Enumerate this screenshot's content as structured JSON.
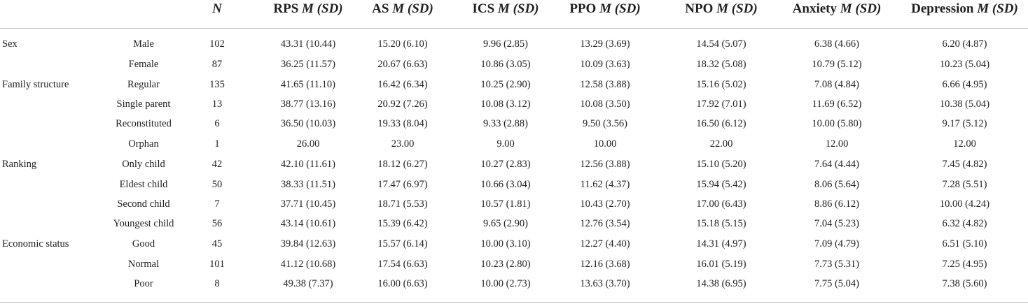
{
  "header": {
    "n": "N",
    "cols": [
      {
        "name": "RPS",
        "stat": "M (SD)"
      },
      {
        "name": "AS",
        "stat": "M (SD)"
      },
      {
        "name": "ICS",
        "stat": "M (SD)"
      },
      {
        "name": "PPO",
        "stat": "M (SD)"
      },
      {
        "name": "NPO",
        "stat": "M (SD)"
      },
      {
        "name": "Anxiety",
        "stat": "M (SD)"
      },
      {
        "name": "Depression",
        "stat": "M (SD)"
      }
    ]
  },
  "rows": [
    {
      "group": "Sex",
      "sub": "Male",
      "n": "102",
      "v": [
        "43.31 (10.44)",
        "15.20 (6.10)",
        "9.96 (2.85)",
        "13.29 (3.69)",
        "14.54 (5.07)",
        "6.38 (4.66)",
        "6.20 (4.87)"
      ]
    },
    {
      "group": "",
      "sub": "Female",
      "n": "87",
      "v": [
        "36.25 (11.57)",
        "20.67 (6.63)",
        "10.86 (3.05)",
        "10.09 (3.63)",
        "18.32 (5.08)",
        "10.79 (5.12)",
        "10.23 (5.04)"
      ]
    },
    {
      "group": "Family structure",
      "sub": "Regular",
      "n": "135",
      "v": [
        "41.65 (11.10)",
        "16.42 (6.34)",
        "10.25 (2.90)",
        "12.58 (3.88)",
        "15.16 (5.02)",
        "7.08 (4.84)",
        "6.66 (4.95)"
      ]
    },
    {
      "group": "",
      "sub": "Single parent",
      "n": "13",
      "v": [
        "38.77 (13.16)",
        "20.92 (7.26)",
        "10.08 (3.12)",
        "10.08 (3.50)",
        "17.92 (7.01)",
        "11.69 (6.52)",
        "10.38 (5.04)"
      ]
    },
    {
      "group": "",
      "sub": "Reconstituted",
      "n": "6",
      "v": [
        "36.50 (10.03)",
        "19.33 (8.04)",
        "9.33 (2.88)",
        "9.50 (3.56)",
        "16.50 (6.12)",
        "10.00 (5.80)",
        "9.17 (5.12)"
      ]
    },
    {
      "group": "",
      "sub": "Orphan",
      "n": "1",
      "v": [
        "26.00",
        "23.00",
        "9.00",
        "10.00",
        "22.00",
        "12.00",
        "12.00"
      ]
    },
    {
      "group": "Ranking",
      "sub": "Only child",
      "n": "42",
      "v": [
        "42.10 (11.61)",
        "18.12 (6.27)",
        "10.27 (2.83)",
        "12.56 (3.88)",
        "15.10 (5.20)",
        "7.64 (4.44)",
        "7.45 (4.82)"
      ]
    },
    {
      "group": "",
      "sub": "Eldest child",
      "n": "50",
      "v": [
        "38.33 (11.51)",
        "17.47 (6.97)",
        "10.66 (3.04)",
        "11.62 (4.37)",
        "15.94 (5.42)",
        "8.06 (5.64)",
        "7.28 (5.51)"
      ]
    },
    {
      "group": "",
      "sub": "Second child",
      "n": "7",
      "v": [
        "37.71 (10.45)",
        "18.71 (5.53)",
        "10.57 (1.81)",
        "10.43 (2.70)",
        "17.00 (6.43)",
        "8.86 (6.12)",
        "10.00 (4.24)"
      ]
    },
    {
      "group": "",
      "sub": "Youngest child",
      "n": "56",
      "v": [
        "43.14 (10.61)",
        "15.39 (6.42)",
        "9.65 (2.90)",
        "12.76 (3.54)",
        "15.18 (5.15)",
        "7.04 (5.23)",
        "6.32 (4.82)"
      ]
    },
    {
      "group": "Economic status",
      "sub": "Good",
      "n": "45",
      "v": [
        "39.84 (12.63)",
        "15.57 (6.14)",
        "10.00 (3.10)",
        "12.27 (4.40)",
        "14.31 (4.97)",
        "7.09 (4.79)",
        "6.51 (5.10)"
      ]
    },
    {
      "group": "",
      "sub": "Normal",
      "n": "101",
      "v": [
        "41.12 (10.68)",
        "17.54 (6.63)",
        "10.23 (2.80)",
        "12.16 (3.68)",
        "16.01 (5.19)",
        "7.73 (5.31)",
        "7.25 (4.95)"
      ]
    },
    {
      "group": "",
      "sub": "Poor",
      "n": "8",
      "v": [
        "49.38 (7.37)",
        "16.00 (6.63)",
        "10.00 (2.73)",
        "13.63 (3.70)",
        "14.38 (6.95)",
        "7.75 (5.04)",
        "7.38 (5.60)"
      ]
    }
  ]
}
